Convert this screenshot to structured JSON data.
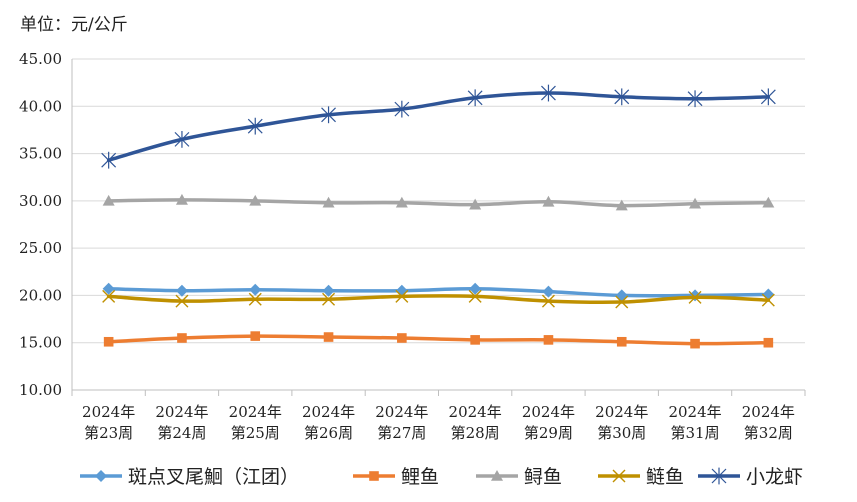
{
  "chart_data": {
    "type": "line",
    "unit_label": "单位：元/公斤",
    "categories": [
      [
        "2024年",
        "第23周"
      ],
      [
        "2024年",
        "第24周"
      ],
      [
        "2024年",
        "第25周"
      ],
      [
        "2024年",
        "第26周"
      ],
      [
        "2024年",
        "第27周"
      ],
      [
        "2024年",
        "第28周"
      ],
      [
        "2024年",
        "第29周"
      ],
      [
        "2024年",
        "第30周"
      ],
      [
        "2024年",
        "第31周"
      ],
      [
        "2024年",
        "第32周"
      ]
    ],
    "ylim": [
      10,
      45
    ],
    "yticks": [
      "10.00",
      "15.00",
      "20.00",
      "25.00",
      "30.00",
      "35.00",
      "40.00",
      "45.00"
    ],
    "grid": true,
    "legend_position": "bottom",
    "series": [
      {
        "name": "斑点叉尾鮰（江团）",
        "color": "#5b9bd5",
        "marker": "diamond",
        "values": [
          20.7,
          20.5,
          20.6,
          20.5,
          20.5,
          20.7,
          20.4,
          20.0,
          20.0,
          20.1
        ]
      },
      {
        "name": "鲤鱼",
        "color": "#ed7d31",
        "marker": "square",
        "values": [
          15.1,
          15.5,
          15.7,
          15.6,
          15.5,
          15.3,
          15.3,
          15.1,
          14.9,
          15.0
        ]
      },
      {
        "name": "鲟鱼",
        "color": "#a5a5a5",
        "marker": "triangle",
        "values": [
          30.0,
          30.1,
          30.0,
          29.8,
          29.8,
          29.6,
          29.9,
          29.5,
          29.7,
          29.8
        ]
      },
      {
        "name": "鲢鱼",
        "color": "#bf9000",
        "marker": "x",
        "values": [
          19.9,
          19.4,
          19.6,
          19.6,
          19.9,
          19.9,
          19.4,
          19.3,
          19.8,
          19.5
        ]
      },
      {
        "name": "小龙虾",
        "color": "#2f5597",
        "marker": "asterisk",
        "values": [
          34.3,
          36.5,
          37.9,
          39.1,
          39.7,
          40.9,
          41.4,
          41.0,
          40.8,
          41.0
        ]
      }
    ]
  }
}
